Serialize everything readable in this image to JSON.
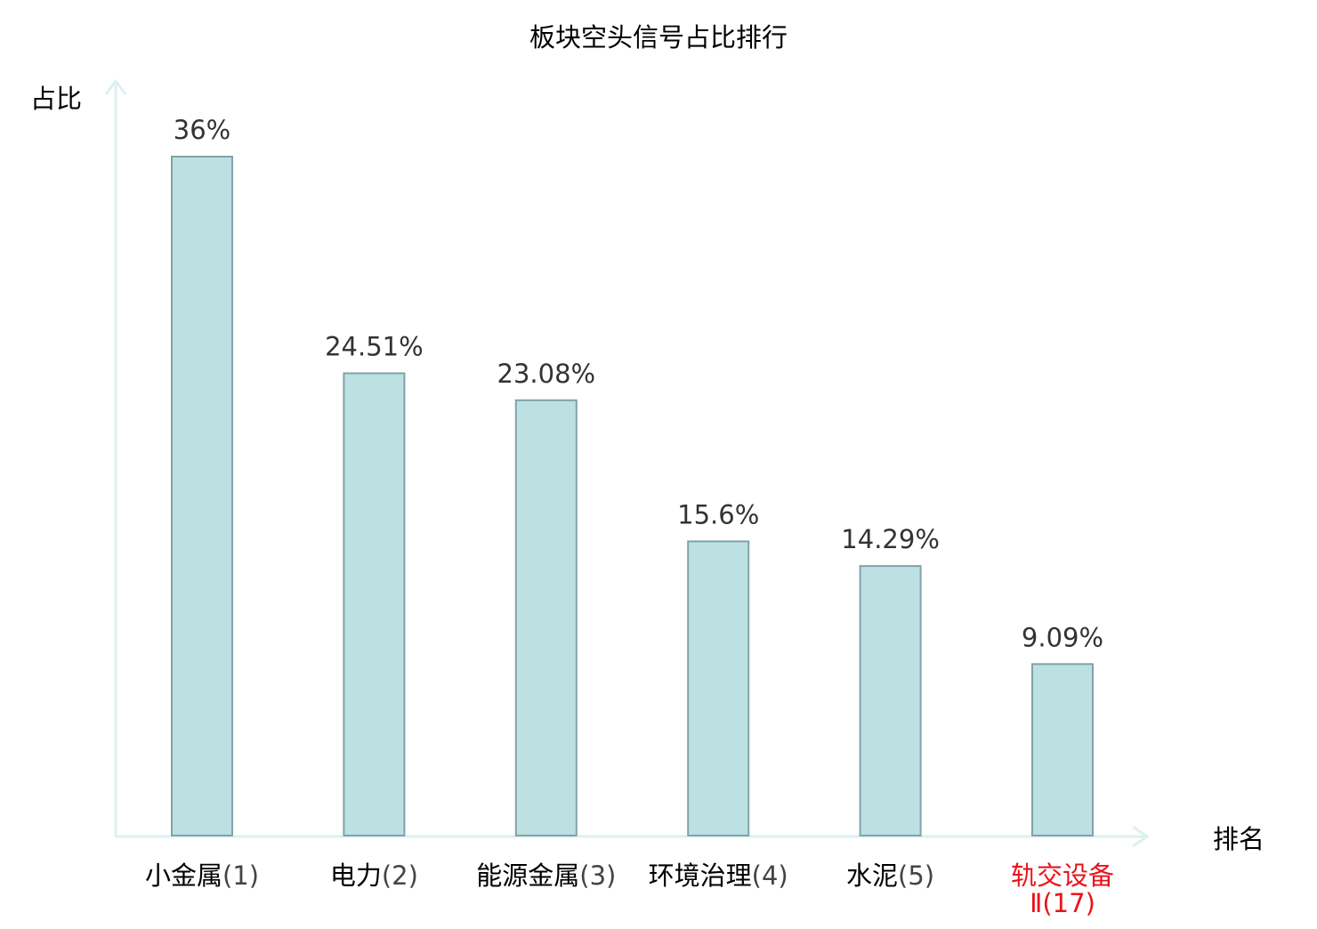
{
  "colors": {
    "bar_fill": "#bde1e3",
    "bar_stroke": "#7fa3a8",
    "axis": "#ddf1ef",
    "value_label": "#333333",
    "category_name": "#000000",
    "category_rank": "#444444",
    "highlight": "#e8141c",
    "title": "#000000"
  },
  "chart_data": {
    "type": "bar",
    "title": "板块空头信号占比排行",
    "ylabel": "占比",
    "xlabel": "排名",
    "ylim": [
      0,
      40
    ],
    "grid": false,
    "legend": "none",
    "unit": "%",
    "categories": [
      {
        "name": "小金属",
        "rank": "(1)",
        "highlight": false
      },
      {
        "name": "电力",
        "rank": "(2)",
        "highlight": false
      },
      {
        "name": "能源金属",
        "rank": "(3)",
        "highlight": false
      },
      {
        "name": "环境治理",
        "rank": "(4)",
        "highlight": false
      },
      {
        "name": "水泥",
        "rank": "(5)",
        "highlight": false
      },
      {
        "name": "轨交设备",
        "rank": "Ⅱ(17)",
        "highlight": true
      }
    ],
    "values": [
      36,
      24.51,
      23.08,
      15.6,
      14.29,
      9.09
    ],
    "value_labels": [
      "36%",
      "24.51%",
      "23.08%",
      "15.6%",
      "14.29%",
      "9.09%"
    ]
  }
}
